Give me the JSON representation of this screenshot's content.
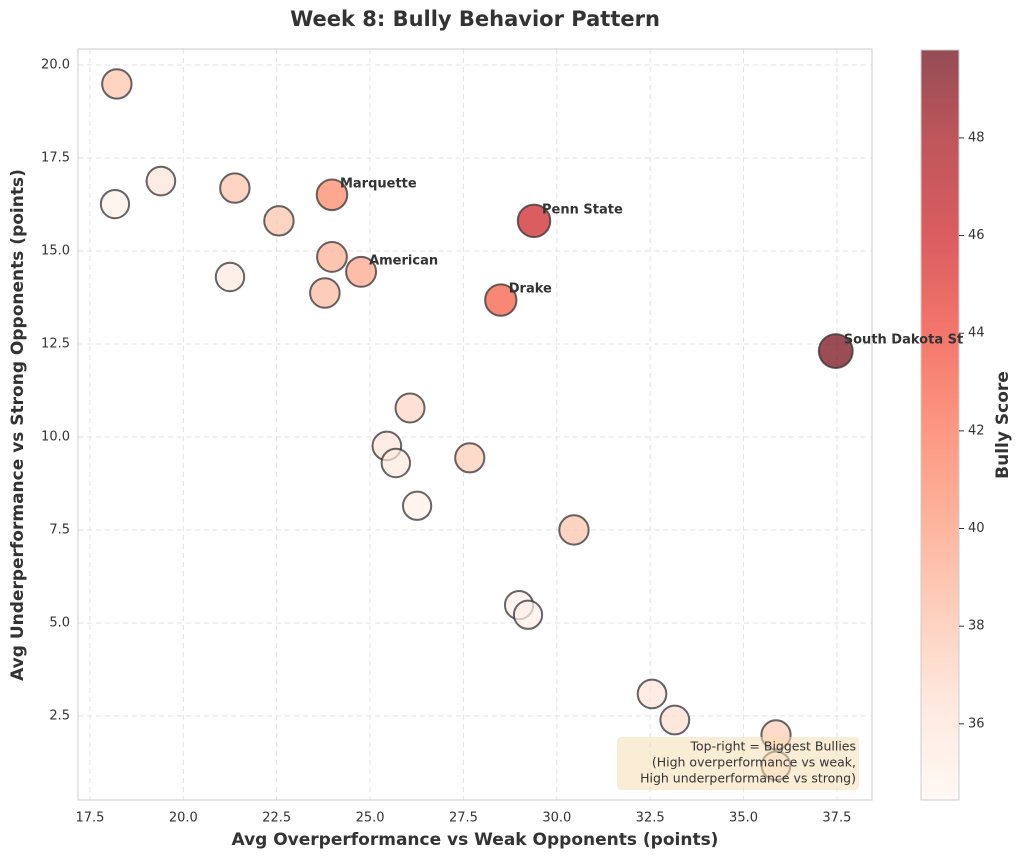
{
  "chart_data": {
    "type": "scatter",
    "title": "Week 8: Bully Behavior Pattern",
    "x_label": "Avg Overperformance vs Weak Opponents (points)",
    "y_label": "Avg Underperformance vs Strong Opponents (points)",
    "colorbar_label": "Bully Score",
    "colormap": "Reds",
    "grid": true,
    "x": [
      18.22,
      18.17,
      19.4,
      21.38,
      21.25,
      22.56,
      23.98,
      23.98,
      23.79,
      24.76,
      29.39,
      28.5,
      37.47,
      26.07,
      25.45,
      25.69,
      26.26,
      27.67,
      30.46,
      28.99,
      29.23,
      32.55,
      33.16,
      35.87,
      35.87
    ],
    "y": [
      19.49,
      16.26,
      16.88,
      16.69,
      14.3,
      15.81,
      16.51,
      14.84,
      13.87,
      14.44,
      15.81,
      13.68,
      12.31,
      10.78,
      9.76,
      9.3,
      8.15,
      9.44,
      7.5,
      5.48,
      5.22,
      3.09,
      2.39,
      1.99,
      1.16
    ],
    "color_values": [
      38,
      35,
      36,
      38,
      35.5,
      38,
      41,
      39,
      38.5,
      39.5,
      46,
      43,
      49.5,
      37,
      36,
      35.5,
      35,
      37.5,
      38,
      35,
      35,
      36,
      36.5,
      37.5,
      36
    ],
    "labels": [
      null,
      null,
      null,
      null,
      null,
      null,
      "Marquette",
      null,
      null,
      "American",
      "Penn State",
      "Drake",
      "South Dakota St",
      null,
      null,
      null,
      null,
      null,
      null,
      null,
      null,
      null,
      null,
      null,
      null
    ],
    "xlim": [
      17.18,
      38.44
    ],
    "ylim": [
      0.24,
      20.43
    ],
    "clim": [
      34.44,
      49.8
    ],
    "xticks": [
      17.5,
      {
        "value": 20,
        "label": "20.0"
      },
      22.5,
      {
        "value": 25,
        "label": "25.0"
      },
      27.5,
      {
        "value": 30,
        "label": "30.0"
      },
      32.5,
      {
        "value": 35,
        "label": "35.0"
      },
      37.5
    ],
    "yticks": [
      2.5,
      {
        "value": 5,
        "label": "5.0"
      },
      7.5,
      {
        "value": 10,
        "label": "10.0"
      },
      12.5,
      {
        "value": 15,
        "label": "15.0"
      },
      17.5,
      {
        "value": 20,
        "label": "20.0"
      }
    ],
    "colorbar_ticks": [
      36,
      38,
      40,
      42,
      44,
      46,
      48
    ],
    "annotation": [
      "Top-right = Biggest Bullies",
      "(High overperformance vs weak,",
      "High underperformance vs strong)"
    ]
  }
}
